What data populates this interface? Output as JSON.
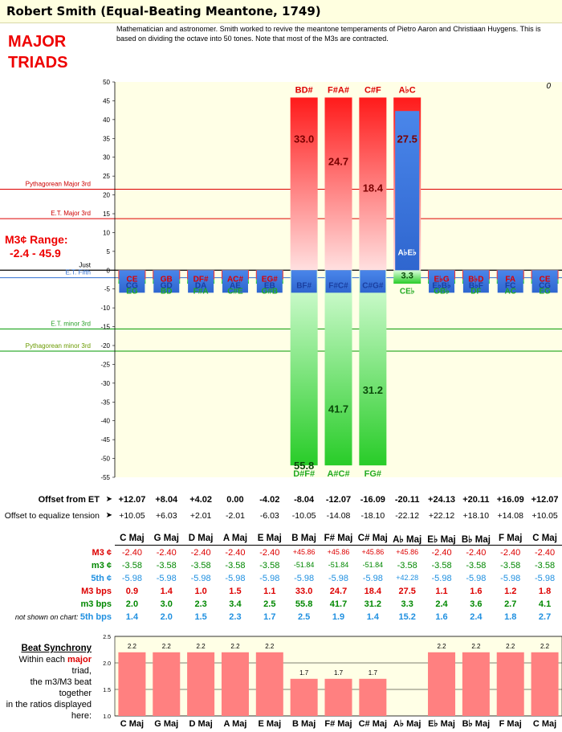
{
  "page": {
    "title": "Robert Smith (Equal-Beating Meantone, 1749)",
    "description": "Mathematician and astronomer. Smith worked to revive the meantone temperaments of Pietro Aaron and Christiaan Huygens. This is based on dividing the octave into 50 tones. Note that most of the M3s are contracted.",
    "heading_line1": "MAJOR",
    "heading_line2": "TRIADS",
    "corner_mark": "0"
  },
  "colors": {
    "major_bar_top": "#ff2020",
    "major_bar_bottom": "#ffd6d6",
    "minor_bar_top": "#d4ffd4",
    "minor_bar_bottom": "#2ed12e",
    "fifth_bar": "#3f7fe0",
    "pythagorean_major_line": "#dd0000",
    "et_major_line": "#dd0000",
    "et_minor_line": "#009900",
    "pythagorean_minor_line": "#009900",
    "et_fifth_line": "#2f6fd0",
    "plot_background": "#ffffe6",
    "sync_bar": "#ff8080",
    "major_text": "#dd0000",
    "minor_text": "#008800",
    "fifth_text": "#2090e0"
  },
  "chart_data": [
    {
      "type": "bar",
      "title": "",
      "ylim": [
        -55,
        50
      ],
      "yticks": [
        50,
        45,
        40,
        35,
        30,
        25,
        20,
        15,
        10,
        5,
        0,
        -5,
        -10,
        -15,
        -20,
        -25,
        -30,
        -35,
        -40,
        -45,
        -50,
        -55
      ],
      "grid": false,
      "categories": [
        "C Maj",
        "G Maj",
        "D Maj",
        "A Maj",
        "E Maj",
        "B Maj",
        "F# Maj",
        "C# Maj",
        "A♭ Maj",
        "E♭ Maj",
        "B♭ Maj",
        "F Maj",
        "C Maj"
      ],
      "reference_lines": [
        {
          "label": "Pythagorean Major 3rd",
          "value": 21.5
        },
        {
          "label": "E.T. Major 3rd",
          "value": 13.7
        },
        {
          "label": "Just",
          "value": 0
        },
        {
          "label": "E.T. Fifth",
          "value": -2
        },
        {
          "label": "E.T. minor 3rd",
          "value": -15.6
        },
        {
          "label": "Pythagorean minor 3rd",
          "value": -21.5
        }
      ],
      "range_label_line1": "M3¢ Range:",
      "range_label_line2": "-2.4 - 45.9",
      "series": [
        {
          "name": "M3 ¢",
          "values": [
            -2.4,
            -2.4,
            -2.4,
            -2.4,
            -2.4,
            45.86,
            45.86,
            45.86,
            45.86,
            -2.4,
            -2.4,
            -2.4,
            -2.4
          ],
          "bar_labels": [
            "CE",
            "GB",
            "DF#",
            "AC#",
            "EG#",
            "BD#",
            "F#A#",
            "C#F",
            "A♭C",
            "E♭G",
            "B♭D",
            "FA",
            "CE"
          ],
          "beat_labels": [
            "0.9",
            "1.4",
            "1.0",
            "1.5",
            "1.1",
            "33.0",
            "24.7",
            "18.4",
            "27.5",
            "1.1",
            "1.6",
            "1.2",
            "1.8"
          ]
        },
        {
          "name": "m3 ¢",
          "values": [
            -3.58,
            -3.58,
            -3.58,
            -3.58,
            -3.58,
            -51.84,
            -51.84,
            -51.84,
            -3.58,
            -3.58,
            -3.58,
            -3.58,
            -3.58
          ],
          "bar_labels": [
            "EG",
            "BD",
            "F#A",
            "C#E",
            "G#B",
            "D#F#",
            "A#C#",
            "FG#",
            "CE♭",
            "GB♭",
            "DF",
            "AC",
            "EG"
          ],
          "beat_labels": [
            "2.0",
            "3.0",
            "2.3",
            "3.4",
            "2.5",
            "55.8",
            "41.7",
            "31.2",
            "3.3",
            "2.4",
            "3.6",
            "2.7",
            "4.1"
          ]
        },
        {
          "name": "5th ¢",
          "values": [
            -5.98,
            -5.98,
            -5.98,
            -5.98,
            -5.98,
            -5.98,
            -5.98,
            -5.98,
            42.28,
            -5.98,
            -5.98,
            -5.98,
            -5.98
          ],
          "bar_labels": [
            "CG",
            "GD",
            "DA",
            "AE",
            "EB",
            "BF#",
            "F#C#",
            "C#G#",
            "A♭E♭",
            "E♭B♭",
            "B♭F",
            "FC",
            "CG"
          ]
        }
      ]
    },
    {
      "type": "bar",
      "title": "Beat Synchrony",
      "ylim": [
        1.0,
        2.5
      ],
      "yticks": [
        2.5,
        2.0,
        1.5,
        1.0
      ],
      "categories": [
        "C Maj",
        "G Maj",
        "D Maj",
        "A Maj",
        "E Maj",
        "B Maj",
        "F# Maj",
        "C# Maj",
        "A♭ Maj",
        "E♭ Maj",
        "B♭ Maj",
        "F Maj",
        "C Maj"
      ],
      "values": [
        2.2,
        2.2,
        2.2,
        2.2,
        2.2,
        1.7,
        1.7,
        1.7,
        null,
        2.2,
        2.2,
        2.2,
        2.2
      ],
      "value_labels": [
        "2.2",
        "2.2",
        "2.2",
        "2.2",
        "2.2",
        "1.7",
        "1.7",
        "1.7",
        "",
        "2.2",
        "2.2",
        "2.2",
        "2.2"
      ]
    }
  ],
  "offsets": {
    "et_label": "Offset from ET",
    "et_arrow": "➤",
    "et_values": [
      "+12.07",
      "+8.04",
      "+4.02",
      "0.00",
      "-4.02",
      "-8.04",
      "-12.07",
      "-16.09",
      "-20.11",
      "+24.13",
      "+20.11",
      "+16.09",
      "+12.07"
    ],
    "tension_label": "Offset to equalize tension",
    "tension_arrow": "➤",
    "tension_values": [
      "+10.05",
      "+6.03",
      "+2.01",
      "-2.01",
      "-6.03",
      "-10.05",
      "-14.08",
      "-18.10",
      "-22.12",
      "+22.12",
      "+18.10",
      "+14.08",
      "+10.05"
    ]
  },
  "table": {
    "headers": [
      "C Maj",
      "G Maj",
      "D Maj",
      "A Maj",
      "E Maj",
      "B Maj",
      "F# Maj",
      "C# Maj",
      "A♭ Maj",
      "E♭ Maj",
      "B♭ Maj",
      "F Maj",
      "C Maj"
    ],
    "rows": [
      {
        "label": "M3 ¢",
        "values": [
          "-2.40",
          "-2.40",
          "-2.40",
          "-2.40",
          "-2.40",
          "+45.86",
          "+45.86",
          "+45.86",
          "+45.86",
          "-2.40",
          "-2.40",
          "-2.40",
          "-2.40"
        ]
      },
      {
        "label": "m3 ¢",
        "values": [
          "-3.58",
          "-3.58",
          "-3.58",
          "-3.58",
          "-3.58",
          "-51.84",
          "-51.84",
          "-51.84",
          "-3.58",
          "-3.58",
          "-3.58",
          "-3.58",
          "-3.58"
        ]
      },
      {
        "label": "5th ¢",
        "values": [
          "-5.98",
          "-5.98",
          "-5.98",
          "-5.98",
          "-5.98",
          "-5.98",
          "-5.98",
          "-5.98",
          "+42.28",
          "-5.98",
          "-5.98",
          "-5.98",
          "-5.98"
        ]
      },
      {
        "label": "M3 bps",
        "values": [
          "0.9",
          "1.4",
          "1.0",
          "1.5",
          "1.1",
          "33.0",
          "24.7",
          "18.4",
          "27.5",
          "1.1",
          "1.6",
          "1.2",
          "1.8"
        ]
      },
      {
        "label": "m3 bps",
        "values": [
          "2.0",
          "3.0",
          "2.3",
          "3.4",
          "2.5",
          "55.8",
          "41.7",
          "31.2",
          "3.3",
          "2.4",
          "3.6",
          "2.7",
          "4.1"
        ]
      },
      {
        "label": "not shown on chart: 5th bps",
        "label_note": "not shown on chart:",
        "label_main": "5th bps",
        "values": [
          "1.4",
          "2.0",
          "1.5",
          "2.3",
          "1.7",
          "2.5",
          "1.9",
          "1.4",
          "15.2",
          "1.6",
          "2.4",
          "1.8",
          "2.7"
        ]
      }
    ]
  },
  "sync": {
    "heading": "Beat Synchrony",
    "text_line1": "Within each ",
    "text_emph": "major",
    "text_line1_end": " triad,",
    "text_line2": "the m3/M3 beat together",
    "text_line3": "in the ratios displayed",
    "text_line4": "here:"
  }
}
